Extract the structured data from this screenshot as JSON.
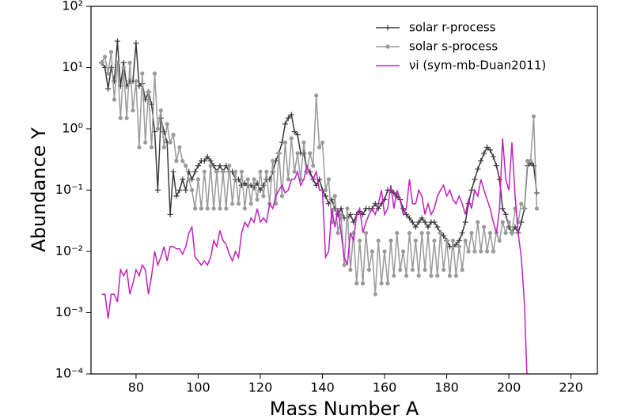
{
  "chart_data": {
    "type": "line",
    "xlabel": "Mass Number A",
    "ylabel": "Abundance Y",
    "log_y": true,
    "legend": "upper right",
    "xlim": [
      65.5,
      228.5
    ],
    "xticks": [
      80,
      100,
      120,
      140,
      160,
      180,
      200,
      220
    ],
    "ylim": [
      0.0001,
      100
    ],
    "yticks": [
      {
        "value": 100,
        "label": "10²"
      },
      {
        "value": 10,
        "label": "10¹"
      },
      {
        "value": 1,
        "label": "10⁰"
      },
      {
        "value": 0.1,
        "label": "10⁻¹"
      },
      {
        "value": 0.01,
        "label": "10⁻²"
      },
      {
        "value": 0.001,
        "label": "10⁻³"
      },
      {
        "value": 0.0001,
        "label": "10⁻⁴"
      }
    ],
    "x": [
      69,
      70,
      71,
      72,
      73,
      74,
      75,
      76,
      77,
      78,
      79,
      80,
      81,
      82,
      83,
      84,
      85,
      86,
      87,
      88,
      89,
      90,
      91,
      92,
      93,
      94,
      95,
      96,
      97,
      98,
      99,
      100,
      101,
      102,
      103,
      104,
      105,
      106,
      107,
      108,
      109,
      110,
      111,
      112,
      113,
      114,
      115,
      116,
      117,
      118,
      119,
      120,
      121,
      122,
      123,
      124,
      125,
      126,
      127,
      128,
      129,
      130,
      131,
      132,
      133,
      134,
      135,
      136,
      137,
      138,
      139,
      140,
      141,
      142,
      143,
      144,
      145,
      146,
      147,
      148,
      149,
      150,
      151,
      152,
      153,
      154,
      155,
      156,
      157,
      158,
      159,
      160,
      161,
      162,
      163,
      164,
      165,
      166,
      167,
      168,
      169,
      170,
      171,
      172,
      173,
      174,
      175,
      176,
      177,
      178,
      179,
      180,
      181,
      182,
      183,
      184,
      185,
      186,
      187,
      188,
      189,
      190,
      191,
      192,
      193,
      194,
      195,
      196,
      197,
      198,
      199,
      200,
      201,
      202,
      203,
      204,
      205,
      206,
      207,
      208,
      209
    ],
    "series": [
      {
        "name": "solar r-process",
        "color": "#3a3a3a",
        "marker": "plus",
        "values": [
          12,
          10,
          4.5,
          10,
          6,
          27,
          5,
          12,
          5,
          6,
          6,
          25,
          5,
          5.5,
          3,
          4,
          2.5,
          0.9,
          0.1,
          1.5,
          0.9,
          0.6,
          0.04,
          0.2,
          0.08,
          0.1,
          0.15,
          0.1,
          0.2,
          0.15,
          0.2,
          0.25,
          0.3,
          0.3,
          0.35,
          0.3,
          0.25,
          0.2,
          0.25,
          0.2,
          0.25,
          0.2,
          0.2,
          0.15,
          0.15,
          0.12,
          0.13,
          0.12,
          0.12,
          0.11,
          0.13,
          0.1,
          0.12,
          0.15,
          0.15,
          0.2,
          0.3,
          0.4,
          0.6,
          1.2,
          1.5,
          1.7,
          0.9,
          0.8,
          0.4,
          0.4,
          0.2,
          0.2,
          0.15,
          0.12,
          0.15,
          0.1,
          0.08,
          0.06,
          0.07,
          0.05,
          0.04,
          0.05,
          0.035,
          0.035,
          0.04,
          0.03,
          0.04,
          0.045,
          0.04,
          0.05,
          0.05,
          0.05,
          0.06,
          0.05,
          0.06,
          0.07,
          0.1,
          0.1,
          0.09,
          0.08,
          0.07,
          0.05,
          0.04,
          0.035,
          0.03,
          0.025,
          0.03,
          0.035,
          0.03,
          0.025,
          0.03,
          0.03,
          0.025,
          0.02,
          0.018,
          0.015,
          0.012,
          0.012,
          0.013,
          0.015,
          0.02,
          0.03,
          0.06,
          0.1,
          0.15,
          0.22,
          0.3,
          0.4,
          0.5,
          0.45,
          0.35,
          0.25,
          0.15,
          0.05,
          0.04,
          0.025,
          0.02,
          0.025,
          0.02,
          0.03,
          0.05,
          0.25,
          0.28,
          0.25,
          0.09
        ]
      },
      {
        "name": "solar s-process",
        "color": "#9a9a9a",
        "marker": "dot",
        "values": [
          12,
          15,
          8,
          18,
          3,
          12,
          1.5,
          10,
          1.5,
          12,
          2,
          6,
          0.5,
          8,
          0.6,
          4,
          0.5,
          8,
          1,
          2,
          0.5,
          1.2,
          0.6,
          0.8,
          0.3,
          0.5,
          0.3,
          0.25,
          0.15,
          0.1,
          0.05,
          0.15,
          0.05,
          0.2,
          0.05,
          0.25,
          0.05,
          0.2,
          0.05,
          0.2,
          0.05,
          0.25,
          0.06,
          0.2,
          0.06,
          0.2,
          0.05,
          0.15,
          0.06,
          0.15,
          0.07,
          0.2,
          0.08,
          0.2,
          0.06,
          0.3,
          0.06,
          0.4,
          0.08,
          0.6,
          0.15,
          0.7,
          0.2,
          0.4,
          0.15,
          0.6,
          0.2,
          0.4,
          0.25,
          3.5,
          0.5,
          0.6,
          0.1,
          0.15,
          0.03,
          0.08,
          0.02,
          0.04,
          0.006,
          0.05,
          0.005,
          0.02,
          0.003,
          0.015,
          0.003,
          0.02,
          0.005,
          0.01,
          0.002,
          0.015,
          0.003,
          0.01,
          0.003,
          0.015,
          0.004,
          0.02,
          0.005,
          0.01,
          0.004,
          0.02,
          0.005,
          0.015,
          0.004,
          0.02,
          0.005,
          0.02,
          0.004,
          0.015,
          0.004,
          0.02,
          0.005,
          0.015,
          0.004,
          0.015,
          0.004,
          0.012,
          0.005,
          0.015,
          0.01,
          0.02,
          0.01,
          0.03,
          0.01,
          0.025,
          0.01,
          0.02,
          0.01,
          0.02,
          0.015,
          0.03,
          0.02,
          0.03,
          0.02,
          0.05,
          0.03,
          0.06,
          0.05,
          0.3,
          0.3,
          1.6,
          0.05
        ]
      },
      {
        "name": "νi (sym-mb-Duan2011)",
        "color": "#c020c0",
        "marker": "none",
        "values": [
          0.002,
          0.002,
          0.0008,
          0.002,
          0.002,
          0.0015,
          0.005,
          0.004,
          0.005,
          0.002,
          0.003,
          0.005,
          0.004,
          0.006,
          0.005,
          0.002,
          0.004,
          0.01,
          0.006,
          0.008,
          0.012,
          0.007,
          0.012,
          0.012,
          0.011,
          0.011,
          0.009,
          0.012,
          0.02,
          0.025,
          0.008,
          0.007,
          0.006,
          0.007,
          0.006,
          0.008,
          0.015,
          0.012,
          0.022,
          0.015,
          0.013,
          0.009,
          0.007,
          0.01,
          0.008,
          0.02,
          0.03,
          0.025,
          0.035,
          0.03,
          0.05,
          0.03,
          0.035,
          0.03,
          0.06,
          0.05,
          0.08,
          0.1,
          0.12,
          0.09,
          0.1,
          0.15,
          0.15,
          0.2,
          0.12,
          0.15,
          0.25,
          0.18,
          0.15,
          0.2,
          0.1,
          0.1,
          0.008,
          0.01,
          0.05,
          0.025,
          0.05,
          0.02,
          0.008,
          0.006,
          0.02,
          0.015,
          0.04,
          0.05,
          0.02,
          0.03,
          0.04,
          0.05,
          0.04,
          0.06,
          0.1,
          0.04,
          0.05,
          0.12,
          0.05,
          0.1,
          0.07,
          0.04,
          0.05,
          0.15,
          0.06,
          0.06,
          0.1,
          0.08,
          0.04,
          0.06,
          0.04,
          0.05,
          0.08,
          0.1,
          0.12,
          0.08,
          0.1,
          0.07,
          0.06,
          0.08,
          0.06,
          0.04,
          0.07,
          0.05,
          0.1,
          0.08,
          0.15,
          0.1,
          0.07,
          0.05,
          0.03,
          0.02,
          0.05,
          0.7,
          0.15,
          0.1,
          0.6,
          0.08,
          0.02,
          0.008,
          0.0015,
          5e-05,
          null,
          null,
          null
        ]
      }
    ]
  }
}
